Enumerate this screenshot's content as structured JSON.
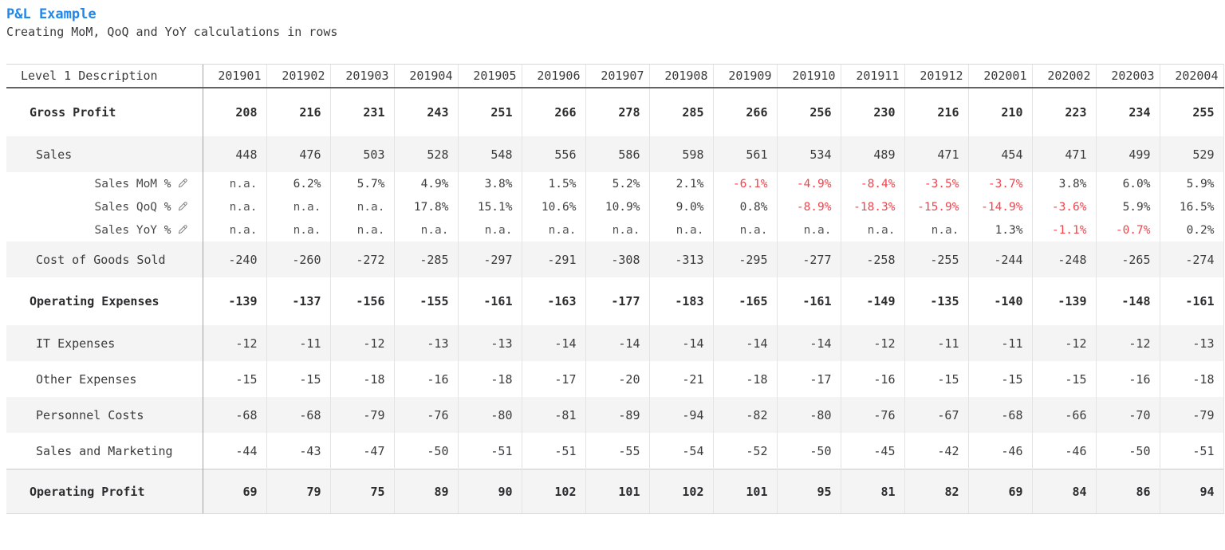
{
  "page": {
    "title": "P&L Example",
    "subtitle": "Creating MoM, QoQ and YoY calculations in rows"
  },
  "colors": {
    "accent_blue": "#2187ea",
    "negative_red": "#f4434b",
    "stripe_gray": "#f4f4f4",
    "text": "#3b3b3d"
  },
  "icons": {
    "row_edit": "pencil-icon"
  },
  "table": {
    "header": {
      "description": "Level 1 Description",
      "periods": [
        "201901",
        "201902",
        "201903",
        "201904",
        "201905",
        "201906",
        "201907",
        "201908",
        "201909",
        "201910",
        "201911",
        "201912",
        "202001",
        "202002",
        "202003",
        "202004"
      ]
    },
    "rows": [
      {
        "label": "Gross Profit",
        "type": "bold",
        "striped": false,
        "editable": false,
        "values": [
          "208",
          "216",
          "231",
          "243",
          "251",
          "266",
          "278",
          "285",
          "266",
          "256",
          "230",
          "216",
          "210",
          "223",
          "234",
          "255"
        ]
      },
      {
        "label": "Sales",
        "type": "normal",
        "striped": true,
        "editable": false,
        "values": [
          "448",
          "476",
          "503",
          "528",
          "548",
          "556",
          "586",
          "598",
          "561",
          "534",
          "489",
          "471",
          "454",
          "471",
          "499",
          "529"
        ]
      },
      {
        "label": "Sales MoM %",
        "type": "percent",
        "striped": false,
        "editable": true,
        "values": [
          "n.a.",
          "6.2%",
          "5.7%",
          "4.9%",
          "3.8%",
          "1.5%",
          "5.2%",
          "2.1%",
          "-6.1%",
          "-4.9%",
          "-8.4%",
          "-3.5%",
          "-3.7%",
          "3.8%",
          "6.0%",
          "5.9%"
        ]
      },
      {
        "label": "Sales QoQ %",
        "type": "percent",
        "striped": false,
        "editable": true,
        "values": [
          "n.a.",
          "n.a.",
          "n.a.",
          "17.8%",
          "15.1%",
          "10.6%",
          "10.9%",
          "9.0%",
          "0.8%",
          "-8.9%",
          "-18.3%",
          "-15.9%",
          "-14.9%",
          "-3.6%",
          "5.9%",
          "16.5%"
        ]
      },
      {
        "label": "Sales YoY %",
        "type": "percent",
        "striped": false,
        "editable": true,
        "values": [
          "n.a.",
          "n.a.",
          "n.a.",
          "n.a.",
          "n.a.",
          "n.a.",
          "n.a.",
          "n.a.",
          "n.a.",
          "n.a.",
          "n.a.",
          "n.a.",
          "1.3%",
          "-1.1%",
          "-0.7%",
          "0.2%"
        ]
      },
      {
        "label": "Cost of Goods Sold",
        "type": "normal",
        "striped": true,
        "editable": false,
        "values": [
          "-240",
          "-260",
          "-272",
          "-285",
          "-297",
          "-291",
          "-308",
          "-313",
          "-295",
          "-277",
          "-258",
          "-255",
          "-244",
          "-248",
          "-265",
          "-274"
        ]
      },
      {
        "label": "Operating Expenses",
        "type": "bold",
        "striped": false,
        "editable": false,
        "values": [
          "-139",
          "-137",
          "-156",
          "-155",
          "-161",
          "-163",
          "-177",
          "-183",
          "-165",
          "-161",
          "-149",
          "-135",
          "-140",
          "-139",
          "-148",
          "-161"
        ]
      },
      {
        "label": "IT Expenses",
        "type": "normal",
        "striped": true,
        "editable": false,
        "values": [
          "-12",
          "-11",
          "-12",
          "-13",
          "-13",
          "-14",
          "-14",
          "-14",
          "-14",
          "-14",
          "-12",
          "-11",
          "-11",
          "-12",
          "-12",
          "-13"
        ]
      },
      {
        "label": "Other Expenses",
        "type": "normal",
        "striped": false,
        "editable": false,
        "values": [
          "-15",
          "-15",
          "-18",
          "-16",
          "-18",
          "-17",
          "-20",
          "-21",
          "-18",
          "-17",
          "-16",
          "-15",
          "-15",
          "-15",
          "-16",
          "-18"
        ]
      },
      {
        "label": "Personnel Costs",
        "type": "normal",
        "striped": true,
        "editable": false,
        "values": [
          "-68",
          "-68",
          "-79",
          "-76",
          "-80",
          "-81",
          "-89",
          "-94",
          "-82",
          "-80",
          "-76",
          "-67",
          "-68",
          "-66",
          "-70",
          "-79"
        ]
      },
      {
        "label": "Sales and Marketing",
        "type": "normal",
        "striped": false,
        "editable": false,
        "values": [
          "-44",
          "-43",
          "-47",
          "-50",
          "-51",
          "-51",
          "-55",
          "-54",
          "-52",
          "-50",
          "-45",
          "-42",
          "-46",
          "-46",
          "-50",
          "-51"
        ]
      },
      {
        "label": "Operating Profit",
        "type": "total",
        "striped": true,
        "editable": false,
        "values": [
          "69",
          "79",
          "75",
          "89",
          "90",
          "102",
          "101",
          "102",
          "101",
          "95",
          "81",
          "82",
          "69",
          "84",
          "86",
          "94"
        ]
      }
    ]
  }
}
